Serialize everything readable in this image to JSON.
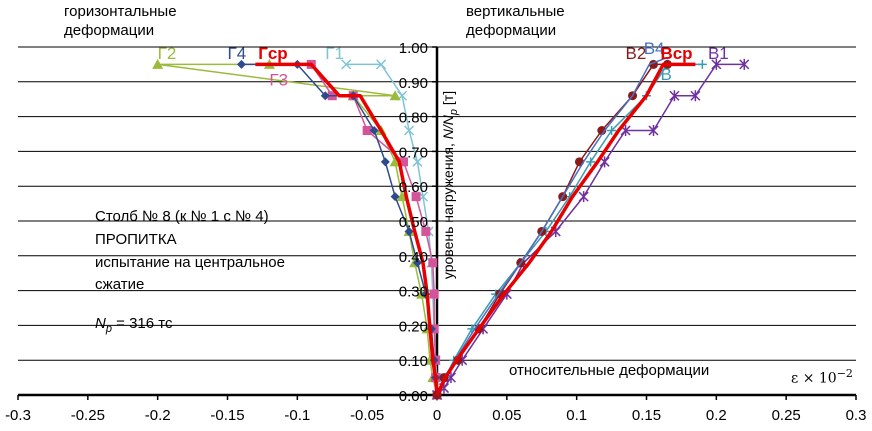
{
  "annotations": {
    "horiz_title_1": "горизонтальные",
    "horiz_title_2": "деформации",
    "vert_title_1": "вертикальные",
    "vert_title_2": "деформации",
    "info_1": "Столб № 8 (к № 1 с № 4)",
    "info_2": "ПРОПИТКА",
    "info_3": "испытание на центральное",
    "info_4": "сжатие",
    "np_symbol": "N",
    "np_sub": "p",
    "np_value": " = 316 тс",
    "x_axis_label": "относительные деформации",
    "scale": "ε × 10",
    "scale_exp": "−2",
    "y_axis_label_1": "уровень нагружения,  ",
    "y_axis_label_2": "N/N",
    "y_axis_label_3": "p",
    "y_axis_label_4": " [т]"
  },
  "chart_data": {
    "type": "line",
    "xlim": [
      -0.3,
      0.3
    ],
    "ylim": [
      0,
      1.0
    ],
    "x_ticks": [
      "-0.3",
      "-0.25",
      "-0.2",
      "-0.15",
      "-0.1",
      "-0.05",
      "0",
      "0.05",
      "0.1",
      "0.15",
      "0.2",
      "0.25",
      "0.3"
    ],
    "x_tick_values": [
      -0.3,
      -0.25,
      -0.2,
      -0.15,
      -0.1,
      -0.05,
      0,
      0.05,
      0.1,
      0.15,
      0.2,
      0.25,
      0.3
    ],
    "y_ticks": [
      "0.00",
      "0.10",
      "0.20",
      "0.30",
      "0.40",
      "0.50",
      "0.60",
      "0.70",
      "0.80",
      "0.90",
      "1.00"
    ],
    "y_tick_values": [
      0,
      0.1,
      0.2,
      0.3,
      0.4,
      0.5,
      0.6,
      0.7,
      0.8,
      0.9,
      1.0
    ],
    "series": [
      {
        "name": "Г1",
        "color": "#7fc4d6",
        "marker": "x",
        "width": 1.5,
        "points": [
          [
            0,
            0
          ],
          [
            0,
            0.05
          ],
          [
            -0.001,
            0.1
          ],
          [
            -0.002,
            0.19
          ],
          [
            -0.003,
            0.29
          ],
          [
            -0.004,
            0.38
          ],
          [
            -0.006,
            0.47
          ],
          [
            -0.01,
            0.57
          ],
          [
            -0.014,
            0.67
          ],
          [
            -0.02,
            0.76
          ],
          [
            -0.025,
            0.86
          ],
          [
            -0.04,
            0.95
          ],
          [
            -0.065,
            0.95
          ]
        ]
      },
      {
        "name": "Г2",
        "color": "#9bbb3b",
        "marker": "triangle",
        "width": 1.5,
        "points": [
          [
            0,
            0
          ],
          [
            -0.003,
            0.05
          ],
          [
            -0.005,
            0.1
          ],
          [
            -0.007,
            0.19
          ],
          [
            -0.011,
            0.29
          ],
          [
            -0.016,
            0.38
          ],
          [
            -0.02,
            0.47
          ],
          [
            -0.025,
            0.57
          ],
          [
            -0.03,
            0.67
          ],
          [
            -0.04,
            0.76
          ],
          [
            -0.06,
            0.86
          ],
          [
            -0.03,
            0.86
          ],
          [
            -0.2,
            0.95
          ],
          [
            -0.12,
            0.95
          ]
        ]
      },
      {
        "name": "Г3",
        "color": "#d4549a",
        "marker": "square",
        "width": 1.5,
        "points": [
          [
            0,
            0
          ],
          [
            -0.001,
            0.05
          ],
          [
            -0.001,
            0.1
          ],
          [
            -0.002,
            0.19
          ],
          [
            -0.002,
            0.29
          ],
          [
            -0.003,
            0.38
          ],
          [
            -0.008,
            0.47
          ],
          [
            -0.015,
            0.57
          ],
          [
            -0.024,
            0.67
          ],
          [
            -0.05,
            0.76
          ],
          [
            -0.06,
            0.86
          ],
          [
            -0.075,
            0.86
          ],
          [
            -0.09,
            0.95
          ]
        ]
      },
      {
        "name": "Г4",
        "color": "#2e4b8f",
        "marker": "diamond",
        "width": 1.5,
        "points": [
          [
            0,
            0
          ],
          [
            -0.001,
            0.05
          ],
          [
            -0.002,
            0.1
          ],
          [
            -0.004,
            0.19
          ],
          [
            -0.008,
            0.29
          ],
          [
            -0.014,
            0.38
          ],
          [
            -0.02,
            0.47
          ],
          [
            -0.03,
            0.57
          ],
          [
            -0.037,
            0.67
          ],
          [
            -0.045,
            0.76
          ],
          [
            -0.06,
            0.86
          ],
          [
            -0.08,
            0.86
          ],
          [
            -0.1,
            0.95
          ],
          [
            -0.14,
            0.95
          ]
        ]
      },
      {
        "name": "Гср",
        "color": "#e80000",
        "marker": "none",
        "width": 3.5,
        "points": [
          [
            0,
            0
          ],
          [
            -0.001,
            0.05
          ],
          [
            -0.003,
            0.1
          ],
          [
            -0.005,
            0.19
          ],
          [
            -0.007,
            0.29
          ],
          [
            -0.01,
            0.38
          ],
          [
            -0.016,
            0.47
          ],
          [
            -0.022,
            0.57
          ],
          [
            -0.027,
            0.67
          ],
          [
            -0.04,
            0.76
          ],
          [
            -0.055,
            0.86
          ],
          [
            -0.07,
            0.86
          ],
          [
            -0.09,
            0.95
          ],
          [
            -0.13,
            0.95
          ]
        ]
      },
      {
        "name": "В1",
        "color": "#7030a0",
        "marker": "star",
        "width": 1.5,
        "points": [
          [
            0,
            0
          ],
          [
            0.005,
            0.02
          ],
          [
            0.01,
            0.05
          ],
          [
            0.018,
            0.1
          ],
          [
            0.033,
            0.19
          ],
          [
            0.05,
            0.29
          ],
          [
            0.062,
            0.38
          ],
          [
            0.085,
            0.47
          ],
          [
            0.105,
            0.57
          ],
          [
            0.12,
            0.67
          ],
          [
            0.135,
            0.76
          ],
          [
            0.155,
            0.76
          ],
          [
            0.17,
            0.86
          ],
          [
            0.185,
            0.86
          ],
          [
            0.2,
            0.95
          ],
          [
            0.22,
            0.95
          ]
        ]
      },
      {
        "name": "В",
        "color": "#3a9bb0",
        "marker": "plus",
        "width": 1.5,
        "points": [
          [
            0,
            0
          ],
          [
            0.006,
            0.05
          ],
          [
            0.012,
            0.1
          ],
          [
            0.025,
            0.19
          ],
          [
            0.042,
            0.29
          ],
          [
            0.06,
            0.38
          ],
          [
            0.078,
            0.47
          ],
          [
            0.095,
            0.57
          ],
          [
            0.11,
            0.67
          ],
          [
            0.125,
            0.76
          ],
          [
            0.15,
            0.86
          ],
          [
            0.165,
            0.95
          ],
          [
            0.19,
            0.95
          ]
        ]
      },
      {
        "name": "В2",
        "color": "#8b1a1a",
        "marker": "circle",
        "width": 1.5,
        "points": [
          [
            0,
            0
          ],
          [
            0.005,
            0.05
          ],
          [
            0.015,
            0.1
          ],
          [
            0.03,
            0.19
          ],
          [
            0.045,
            0.29
          ],
          [
            0.06,
            0.38
          ],
          [
            0.075,
            0.47
          ],
          [
            0.09,
            0.57
          ],
          [
            0.102,
            0.67
          ],
          [
            0.118,
            0.76
          ],
          [
            0.14,
            0.86
          ],
          [
            0.155,
            0.95
          ],
          [
            0.165,
            0.95
          ]
        ]
      },
      {
        "name": "В4",
        "color": "#4472c4",
        "marker": "none",
        "width": 1.5,
        "points": [
          [
            0,
            0
          ],
          [
            0.005,
            0.05
          ],
          [
            0.013,
            0.1
          ],
          [
            0.027,
            0.19
          ],
          [
            0.044,
            0.29
          ],
          [
            0.06,
            0.38
          ],
          [
            0.075,
            0.47
          ],
          [
            0.09,
            0.57
          ],
          [
            0.105,
            0.67
          ],
          [
            0.12,
            0.76
          ],
          [
            0.14,
            0.86
          ],
          [
            0.152,
            0.95
          ],
          [
            0.165,
            0.97
          ]
        ]
      },
      {
        "name": "Вср",
        "color": "#e80000",
        "marker": "none",
        "width": 3.5,
        "points": [
          [
            0,
            0
          ],
          [
            0.006,
            0.05
          ],
          [
            0.014,
            0.1
          ],
          [
            0.03,
            0.19
          ],
          [
            0.048,
            0.29
          ],
          [
            0.066,
            0.38
          ],
          [
            0.082,
            0.47
          ],
          [
            0.097,
            0.57
          ],
          [
            0.115,
            0.67
          ],
          [
            0.13,
            0.76
          ],
          [
            0.15,
            0.86
          ],
          [
            0.162,
            0.95
          ],
          [
            0.185,
            0.95
          ]
        ]
      }
    ],
    "series_labels": [
      {
        "text": "Г2",
        "x": -0.2,
        "y": 0.965,
        "color": "#9bbb3b",
        "bold": false
      },
      {
        "text": "Г4",
        "x": -0.15,
        "y": 0.965,
        "color": "#2e4b8f",
        "bold": false
      },
      {
        "text": "Гср",
        "x": -0.128,
        "y": 0.965,
        "color": "#e80000",
        "bold": true
      },
      {
        "text": "Г3",
        "x": -0.12,
        "y": 0.89,
        "color": "#d4549a",
        "bold": false
      },
      {
        "text": "Г1",
        "x": -0.08,
        "y": 0.965,
        "color": "#7fc4d6",
        "bold": false
      },
      {
        "text": "В2",
        "x": 0.135,
        "y": 0.965,
        "color": "#8b1a1a",
        "bold": false
      },
      {
        "text": "В4",
        "x": 0.148,
        "y": 0.98,
        "color": "#4472c4",
        "bold": false
      },
      {
        "text": "Вср",
        "x": 0.16,
        "y": 0.965,
        "color": "#e80000",
        "bold": true
      },
      {
        "text": "В",
        "x": 0.16,
        "y": 0.905,
        "color": "#3a9bb0",
        "bold": false
      },
      {
        "text": "В1",
        "x": 0.194,
        "y": 0.965,
        "color": "#7030a0",
        "bold": false
      }
    ]
  }
}
